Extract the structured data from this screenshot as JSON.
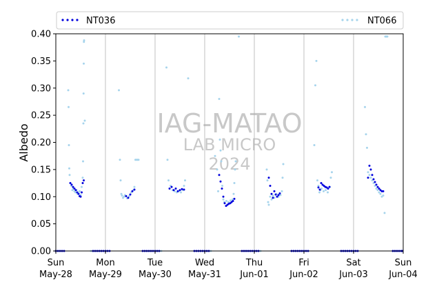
{
  "chart_data": {
    "type": "scatter",
    "ylabel": "Albedo",
    "ylim": [
      0,
      0.4
    ],
    "yticks": [
      "0.00",
      "0.05",
      "0.10",
      "0.15",
      "0.20",
      "0.25",
      "0.30",
      "0.35",
      "0.40"
    ],
    "xlim": [
      "2023-05-28T00:00",
      "2023-06-04T00:00"
    ],
    "xticks": [
      {
        "date": "2023-05-28",
        "day": "Sun",
        "label": "May-28"
      },
      {
        "date": "2023-05-29",
        "day": "Mon",
        "label": "May-29"
      },
      {
        "date": "2023-05-30",
        "day": "Tue",
        "label": "May-30"
      },
      {
        "date": "2023-05-31",
        "day": "Wed",
        "label": "May-31"
      },
      {
        "date": "2023-06-01",
        "day": "Thu",
        "label": "Jun-01"
      },
      {
        "date": "2023-06-02",
        "day": "Fri",
        "label": "Jun-02"
      },
      {
        "date": "2023-06-03",
        "day": "Sat",
        "label": "Jun-03"
      },
      {
        "date": "2023-06-04",
        "day": "Sun",
        "label": "Jun-04"
      }
    ],
    "vertical_gridlines": true,
    "legend_placement": "top",
    "watermark": [
      "IAG-MATAO",
      "LAB MICRO",
      "2024"
    ],
    "series": [
      {
        "name": "NT036",
        "color": "#0000dd",
        "marker": "dot",
        "points": [
          [
            "2023-05-28T00:00",
            0
          ],
          [
            "2023-05-28T04:00",
            0
          ],
          [
            "2023-05-28T07:00",
            0.125
          ],
          [
            "2023-05-28T07:40",
            0.122
          ],
          [
            "2023-05-28T08:20",
            0.118
          ],
          [
            "2023-05-28T09:00",
            0.115
          ],
          [
            "2023-05-28T09:40",
            0.112
          ],
          [
            "2023-05-28T10:20",
            0.108
          ],
          [
            "2023-05-28T11:00",
            0.105
          ],
          [
            "2023-05-28T11:30",
            0.101
          ],
          [
            "2023-05-28T12:00",
            0.1
          ],
          [
            "2023-05-28T12:30",
            0.108
          ],
          [
            "2023-05-28T13:00",
            0.125
          ],
          [
            "2023-05-28T13:30",
            0.13
          ],
          [
            "2023-05-28T18:00",
            0
          ],
          [
            "2023-05-29T02:00",
            0
          ],
          [
            "2023-05-29T10:00",
            0.101
          ],
          [
            "2023-05-29T11:00",
            0.098
          ],
          [
            "2023-05-29T12:00",
            0.104
          ],
          [
            "2023-05-29T13:00",
            0.11
          ],
          [
            "2023-05-29T14:00",
            0.113
          ],
          [
            "2023-05-29T18:00",
            0
          ],
          [
            "2023-05-30T02:00",
            0
          ],
          [
            "2023-05-30T07:00",
            0.115
          ],
          [
            "2023-05-30T08:00",
            0.118
          ],
          [
            "2023-05-30T09:00",
            0.112
          ],
          [
            "2023-05-30T10:00",
            0.115
          ],
          [
            "2023-05-30T11:00",
            0.11
          ],
          [
            "2023-05-30T12:00",
            0.112
          ],
          [
            "2023-05-30T13:00",
            0.114
          ],
          [
            "2023-05-30T14:00",
            0.113
          ],
          [
            "2023-05-30T19:00",
            0
          ],
          [
            "2023-05-31T02:00",
            0
          ],
          [
            "2023-05-31T07:00",
            0.14
          ],
          [
            "2023-05-31T07:40",
            0.128
          ],
          [
            "2023-05-31T08:20",
            0.115
          ],
          [
            "2023-05-31T09:00",
            0.1
          ],
          [
            "2023-05-31T09:40",
            0.088
          ],
          [
            "2023-05-31T10:20",
            0.083
          ],
          [
            "2023-05-31T11:00",
            0.085
          ],
          [
            "2023-05-31T11:40",
            0.087
          ],
          [
            "2023-05-31T12:20",
            0.088
          ],
          [
            "2023-05-31T13:00",
            0.09
          ],
          [
            "2023-05-31T13:40",
            0.092
          ],
          [
            "2023-05-31T14:20",
            0.096
          ],
          [
            "2023-05-31T18:00",
            0
          ],
          [
            "2023-06-01T02:00",
            0
          ],
          [
            "2023-06-01T07:00",
            0.135
          ],
          [
            "2023-06-01T07:40",
            0.12
          ],
          [
            "2023-06-01T08:20",
            0.105
          ],
          [
            "2023-06-01T09:00",
            0.098
          ],
          [
            "2023-06-01T09:40",
            0.11
          ],
          [
            "2023-06-01T10:20",
            0.104
          ],
          [
            "2023-06-01T11:00",
            0.1
          ],
          [
            "2023-06-01T11:40",
            0.103
          ],
          [
            "2023-06-01T12:20",
            0.106
          ],
          [
            "2023-06-01T18:00",
            0
          ],
          [
            "2023-06-02T02:00",
            0
          ],
          [
            "2023-06-02T07:00",
            0.117
          ],
          [
            "2023-06-02T07:40",
            0.113
          ],
          [
            "2023-06-02T08:20",
            0.125
          ],
          [
            "2023-06-02T09:00",
            0.122
          ],
          [
            "2023-06-02T09:40",
            0.12
          ],
          [
            "2023-06-02T10:20",
            0.118
          ],
          [
            "2023-06-02T11:00",
            0.117
          ],
          [
            "2023-06-02T11:40",
            0.115
          ],
          [
            "2023-06-02T12:20",
            0.118
          ],
          [
            "2023-06-02T18:00",
            0
          ],
          [
            "2023-06-03T02:00",
            0
          ],
          [
            "2023-06-03T07:00",
            0.135
          ],
          [
            "2023-06-03T07:40",
            0.157
          ],
          [
            "2023-06-03T08:20",
            0.15
          ],
          [
            "2023-06-03T09:00",
            0.14
          ],
          [
            "2023-06-03T09:40",
            0.132
          ],
          [
            "2023-06-03T10:20",
            0.127
          ],
          [
            "2023-06-03T11:00",
            0.122
          ],
          [
            "2023-06-03T11:40",
            0.118
          ],
          [
            "2023-06-03T12:20",
            0.115
          ],
          [
            "2023-06-03T13:00",
            0.112
          ],
          [
            "2023-06-03T13:40",
            0.11
          ],
          [
            "2023-06-03T14:20",
            0.11
          ],
          [
            "2023-06-03T19:00",
            0
          ],
          [
            "2023-06-03T23:30",
            0
          ]
        ]
      },
      {
        "name": "NT066",
        "color": "#a6d4ec",
        "marker": "dot",
        "points": [
          [
            "2023-05-28T00:00",
            0
          ],
          [
            "2023-05-28T02:00",
            0
          ],
          [
            "2023-05-28T04:00",
            0
          ],
          [
            "2023-05-28T06:00",
            0.296
          ],
          [
            "2023-05-28T06:10",
            0.265
          ],
          [
            "2023-05-28T06:20",
            0.195
          ],
          [
            "2023-05-28T06:30",
            0.152
          ],
          [
            "2023-05-28T06:40",
            0.14
          ],
          [
            "2023-05-28T07:00",
            0.125
          ],
          [
            "2023-05-28T07:30",
            0.12
          ],
          [
            "2023-05-28T08:00",
            0.112
          ],
          [
            "2023-05-28T08:30",
            0.115
          ],
          [
            "2023-05-28T09:00",
            0.11
          ],
          [
            "2023-05-28T09:30",
            0.108
          ],
          [
            "2023-05-28T10:00",
            0.112
          ],
          [
            "2023-05-28T10:30",
            0.105
          ],
          [
            "2023-05-28T11:00",
            0.107
          ],
          [
            "2023-05-28T11:30",
            0.11
          ],
          [
            "2023-05-28T12:00",
            0.103
          ],
          [
            "2023-05-28T12:30",
            0.118
          ],
          [
            "2023-05-28T13:00",
            0.135
          ],
          [
            "2023-05-28T13:10",
            0.165
          ],
          [
            "2023-05-28T13:20",
            0.235
          ],
          [
            "2023-05-28T13:25",
            0.29
          ],
          [
            "2023-05-28T13:30",
            0.345
          ],
          [
            "2023-05-28T13:35",
            0.385
          ],
          [
            "2023-05-28T13:40",
            0.388
          ],
          [
            "2023-05-28T14:00",
            0.24
          ],
          [
            "2023-05-28T17:00",
            0
          ],
          [
            "2023-05-28T21:00",
            0
          ],
          [
            "2023-05-29T01:00",
            0
          ],
          [
            "2023-05-29T06:30",
            0.296
          ],
          [
            "2023-05-29T07:00",
            0.168
          ],
          [
            "2023-05-29T07:20",
            0.13
          ],
          [
            "2023-05-29T07:40",
            0.105
          ],
          [
            "2023-05-29T08:00",
            0.102
          ],
          [
            "2023-05-29T08:30",
            0.098
          ],
          [
            "2023-05-29T09:00",
            0.1
          ],
          [
            "2023-05-29T09:30",
            0.103
          ],
          [
            "2023-05-29T10:30",
            0.097
          ],
          [
            "2023-05-29T11:30",
            0.101
          ],
          [
            "2023-05-29T12:30",
            0.108
          ],
          [
            "2023-05-29T13:30",
            0.112
          ],
          [
            "2023-05-29T14:00",
            0.118
          ],
          [
            "2023-05-29T14:30",
            0.168
          ],
          [
            "2023-05-29T15:00",
            0.168
          ],
          [
            "2023-05-29T15:30",
            0.168
          ],
          [
            "2023-05-29T16:00",
            0.168
          ],
          [
            "2023-05-29T19:00",
            0
          ],
          [
            "2023-05-29T23:00",
            0
          ],
          [
            "2023-05-30T03:00",
            0
          ],
          [
            "2023-05-30T05:30",
            0.338
          ],
          [
            "2023-05-30T06:00",
            0.168
          ],
          [
            "2023-05-30T06:30",
            0.13
          ],
          [
            "2023-05-30T07:30",
            0.12
          ],
          [
            "2023-05-30T08:30",
            0.112
          ],
          [
            "2023-05-30T09:30",
            0.11
          ],
          [
            "2023-05-30T10:30",
            0.108
          ],
          [
            "2023-05-30T11:30",
            0.11
          ],
          [
            "2023-05-30T12:30",
            0.108
          ],
          [
            "2023-05-30T13:30",
            0.112
          ],
          [
            "2023-05-30T14:00",
            0.12
          ],
          [
            "2023-05-30T14:30",
            0.13
          ],
          [
            "2023-05-30T16:00",
            0.318
          ],
          [
            "2023-05-30T19:00",
            0
          ],
          [
            "2023-05-30T23:00",
            0
          ],
          [
            "2023-05-31T03:00",
            0
          ],
          [
            "2023-05-31T05:00",
            0.175
          ],
          [
            "2023-05-31T06:00",
            0.15
          ],
          [
            "2023-05-31T06:30",
            0.11
          ],
          [
            "2023-05-31T07:00",
            0.28
          ],
          [
            "2023-05-31T07:20",
            0.205
          ],
          [
            "2023-05-31T07:40",
            0.185
          ],
          [
            "2023-05-31T08:00",
            0.165
          ],
          [
            "2023-05-31T08:30",
            0.12
          ],
          [
            "2023-05-31T09:00",
            0.095
          ],
          [
            "2023-05-31T09:30",
            0.09
          ],
          [
            "2023-05-31T10:30",
            0.092
          ],
          [
            "2023-05-31T11:30",
            0.09
          ],
          [
            "2023-05-31T12:30",
            0.093
          ],
          [
            "2023-05-31T13:30",
            0.095
          ],
          [
            "2023-05-31T14:00",
            0.105
          ],
          [
            "2023-05-31T14:20",
            0.125
          ],
          [
            "2023-05-31T14:40",
            0.15
          ],
          [
            "2023-05-31T15:00",
            0.165
          ],
          [
            "2023-05-31T16:30",
            0.395
          ],
          [
            "2023-05-31T19:00",
            0
          ],
          [
            "2023-05-31T23:00",
            0
          ],
          [
            "2023-06-01T03:00",
            0
          ],
          [
            "2023-06-01T06:00",
            0.15
          ],
          [
            "2023-06-01T06:20",
            0.13
          ],
          [
            "2023-06-01T06:40",
            0.09
          ],
          [
            "2023-06-01T07:00",
            0.085
          ],
          [
            "2023-06-01T07:40",
            0.1
          ],
          [
            "2023-06-01T08:20",
            0.095
          ],
          [
            "2023-06-01T09:00",
            0.102
          ],
          [
            "2023-06-01T09:40",
            0.098
          ],
          [
            "2023-06-01T10:40",
            0.105
          ],
          [
            "2023-06-01T11:40",
            0.1
          ],
          [
            "2023-06-01T12:40",
            0.103
          ],
          [
            "2023-06-01T13:20",
            0.11
          ],
          [
            "2023-06-01T13:40",
            0.135
          ],
          [
            "2023-06-01T14:00",
            0.16
          ],
          [
            "2023-06-01T18:00",
            0
          ],
          [
            "2023-06-01T22:00",
            0
          ],
          [
            "2023-06-02T02:00",
            0
          ],
          [
            "2023-06-02T05:00",
            0.195
          ],
          [
            "2023-06-02T05:30",
            0.305
          ],
          [
            "2023-06-02T06:00",
            0.35
          ],
          [
            "2023-06-02T06:30",
            0.13
          ],
          [
            "2023-06-02T07:00",
            0.12
          ],
          [
            "2023-06-02T07:30",
            0.108
          ],
          [
            "2023-06-02T08:00",
            0.112
          ],
          [
            "2023-06-02T08:30",
            0.115
          ],
          [
            "2023-06-02T09:30",
            0.11
          ],
          [
            "2023-06-02T10:30",
            0.112
          ],
          [
            "2023-06-02T11:30",
            0.108
          ],
          [
            "2023-06-02T12:30",
            0.118
          ],
          [
            "2023-06-02T13:00",
            0.135
          ],
          [
            "2023-06-02T13:30",
            0.145
          ],
          [
            "2023-06-02T18:00",
            0
          ],
          [
            "2023-06-02T22:00",
            0
          ],
          [
            "2023-06-03T02:00",
            0
          ],
          [
            "2023-06-03T05:30",
            0.265
          ],
          [
            "2023-06-03T06:00",
            0.215
          ],
          [
            "2023-06-03T06:30",
            0.19
          ],
          [
            "2023-06-03T07:00",
            0.145
          ],
          [
            "2023-06-03T07:40",
            0.14
          ],
          [
            "2023-06-03T08:20",
            0.135
          ],
          [
            "2023-06-03T09:00",
            0.13
          ],
          [
            "2023-06-03T09:40",
            0.125
          ],
          [
            "2023-06-03T10:20",
            0.12
          ],
          [
            "2023-06-03T11:00",
            0.115
          ],
          [
            "2023-06-03T11:40",
            0.112
          ],
          [
            "2023-06-03T12:20",
            0.108
          ],
          [
            "2023-06-03T13:00",
            0.105
          ],
          [
            "2023-06-03T13:40",
            0.1
          ],
          [
            "2023-06-03T14:20",
            0.102
          ],
          [
            "2023-06-03T15:00",
            0.07
          ],
          [
            "2023-06-03T15:20",
            0.395
          ],
          [
            "2023-06-03T15:40",
            0.395
          ],
          [
            "2023-06-03T16:00",
            0.395
          ],
          [
            "2023-06-03T16:20",
            0.395
          ],
          [
            "2023-06-03T19:00",
            0
          ],
          [
            "2023-06-03T23:30",
            0
          ]
        ]
      }
    ]
  }
}
